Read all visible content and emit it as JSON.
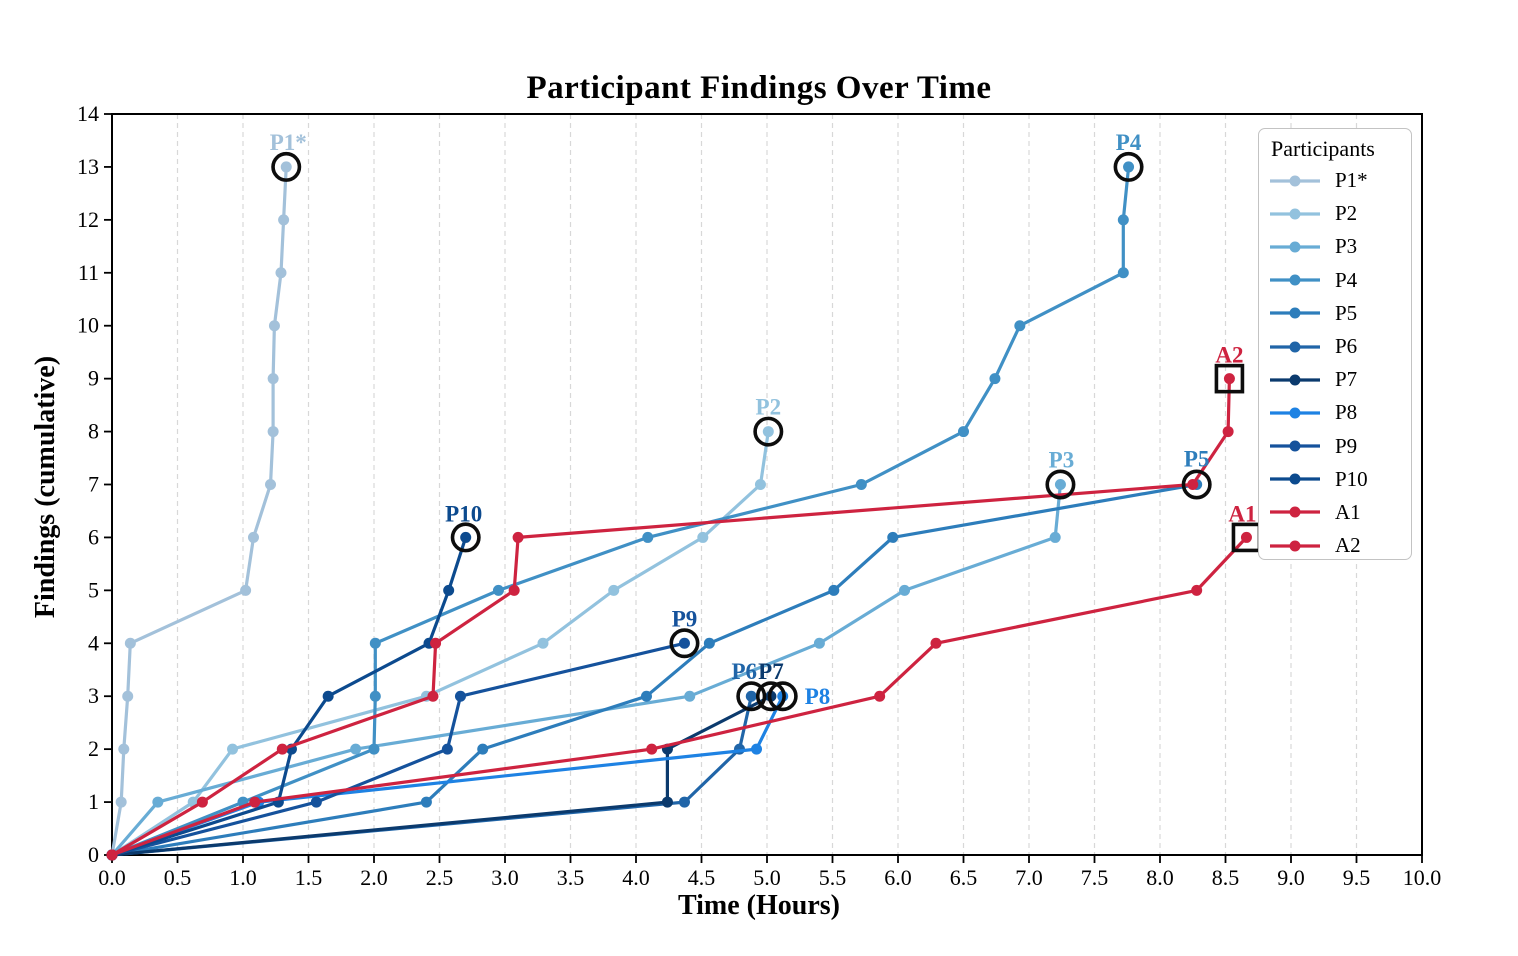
{
  "chart_data": {
    "type": "line",
    "title": "Participant Findings Over Time",
    "xlabel": "Time (Hours)",
    "ylabel": "Findings (cumulative)",
    "xlim": [
      0,
      10
    ],
    "ylim": [
      0,
      14
    ],
    "grid": {
      "vertical_dashed_step": 0.5,
      "color": "#d8d8d8",
      "horizontal": false
    },
    "x_ticks": [
      "0.0",
      "0.5",
      "1.0",
      "1.5",
      "2.0",
      "2.5",
      "3.0",
      "3.5",
      "4.0",
      "4.5",
      "5.0",
      "5.5",
      "6.0",
      "6.5",
      "7.0",
      "7.5",
      "8.0",
      "8.5",
      "9.0",
      "9.5",
      "10.0"
    ],
    "y_ticks": [
      "0",
      "1",
      "2",
      "3",
      "4",
      "5",
      "6",
      "7",
      "8",
      "9",
      "10",
      "11",
      "12",
      "13",
      "14"
    ],
    "legend": {
      "title": "Participants",
      "position": "upper right"
    },
    "note": "Each series starts at (0,0); times[] = hour at which cumulative finding 1..N was reached; endpoint highlighted with black circle (P series) or black square (A series).",
    "series": [
      {
        "name": "P1*",
        "color": "#a3c1da",
        "end_marker": "circle",
        "label": {
          "dx": 2,
          "dy": -17,
          "anchor": "middle"
        },
        "times": [
          0.07,
          0.09,
          0.12,
          0.14,
          1.02,
          1.08,
          1.21,
          1.23,
          1.23,
          1.24,
          1.29,
          1.31,
          1.33
        ]
      },
      {
        "name": "P2",
        "color": "#92c2de",
        "end_marker": "circle",
        "label": {
          "dx": 0,
          "dy": -17,
          "anchor": "middle"
        },
        "times": [
          0.62,
          0.92,
          2.4,
          3.29,
          3.83,
          4.51,
          4.95,
          5.01
        ]
      },
      {
        "name": "P3",
        "color": "#68acd5",
        "end_marker": "circle",
        "label": {
          "dx": 1,
          "dy": -17,
          "anchor": "middle"
        },
        "times": [
          0.35,
          1.86,
          4.41,
          5.4,
          6.05,
          7.2,
          7.24
        ]
      },
      {
        "name": "P4",
        "color": "#4090c5",
        "end_marker": "circle",
        "label": {
          "dx": 0,
          "dy": -17,
          "anchor": "middle"
        },
        "times": [
          1.0,
          2.0,
          2.01,
          2.01,
          2.95,
          4.09,
          5.72,
          6.5,
          6.74,
          6.93,
          7.72,
          7.72,
          7.76
        ]
      },
      {
        "name": "P5",
        "color": "#2d7dbb",
        "end_marker": "circle",
        "label": {
          "dx": 0,
          "dy": -18,
          "anchor": "middle"
        },
        "times": [
          2.4,
          2.83,
          4.08,
          4.56,
          5.51,
          5.96,
          8.28
        ]
      },
      {
        "name": "P6",
        "color": "#2065a8",
        "end_marker": "circle",
        "label": {
          "dx": -7,
          "dy": -17,
          "anchor": "middle"
        },
        "times": [
          4.37,
          4.79,
          4.88
        ]
      },
      {
        "name": "P7",
        "color": "#0b3a6d",
        "end_marker": "circle",
        "label": {
          "dx": 0,
          "dy": -17,
          "anchor": "middle"
        },
        "times": [
          4.24,
          4.24,
          5.03
        ]
      },
      {
        "name": "P8",
        "color": "#1e82e3",
        "end_marker": "circle",
        "label": {
          "dx": 22,
          "dy": 8,
          "anchor": "start"
        },
        "times": [
          1.12,
          4.92,
          5.12
        ]
      },
      {
        "name": "P9",
        "color": "#15529c",
        "end_marker": "circle",
        "label": {
          "dx": 0,
          "dy": -17,
          "anchor": "middle"
        },
        "times": [
          1.56,
          2.56,
          2.66,
          4.37
        ]
      },
      {
        "name": "P10",
        "color": "#0c4a8e",
        "end_marker": "circle",
        "label": {
          "dx": -2,
          "dy": -16,
          "anchor": "middle"
        },
        "times": [
          1.27,
          1.37,
          1.65,
          2.42,
          2.57,
          2.7
        ]
      },
      {
        "name": "A1",
        "color": "#ce2340",
        "end_marker": "square",
        "label": {
          "dx": -4,
          "dy": -16,
          "anchor": "middle"
        },
        "times": [
          1.09,
          4.12,
          5.86,
          6.29,
          8.28,
          8.66
        ]
      },
      {
        "name": "A2",
        "color": "#ce2340",
        "end_marker": "square",
        "label": {
          "dx": 0,
          "dy": -16,
          "anchor": "middle"
        },
        "times": [
          0.69,
          1.3,
          2.45,
          2.47,
          3.07,
          3.1,
          8.25,
          8.52,
          8.53
        ]
      }
    ]
  }
}
